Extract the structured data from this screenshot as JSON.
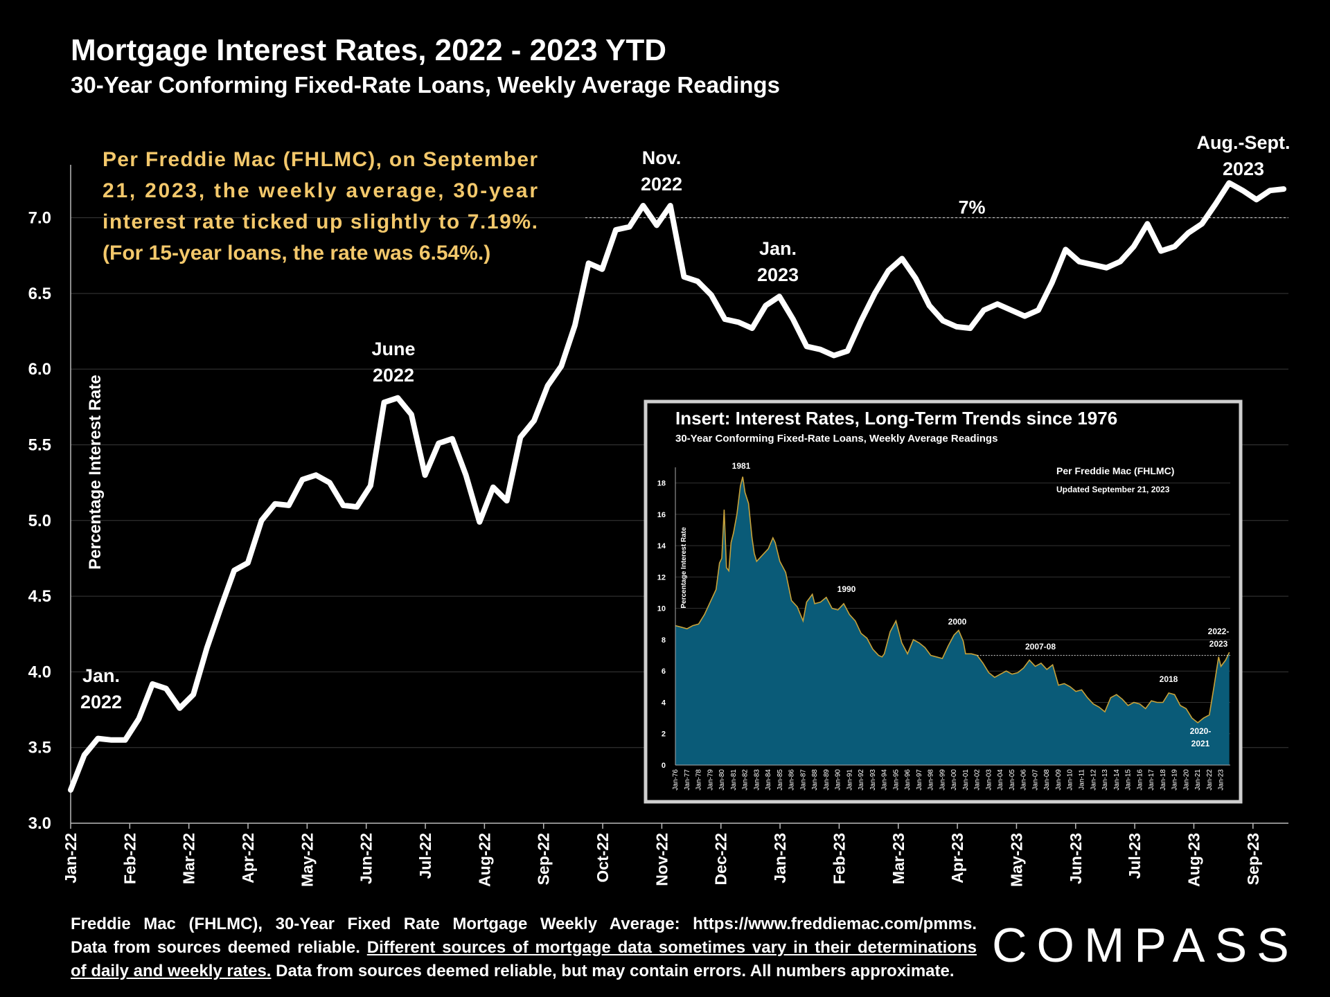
{
  "header": {
    "title": "Mortgage Interest Rates, 2022 - 2023 YTD",
    "subtitle": "30-Year Conforming Fixed-Rate Loans, Weekly Average Readings"
  },
  "chart_data": [
    {
      "type": "line",
      "title": "Mortgage Interest Rates, 2022 - 2023 YTD",
      "subtitle": "30-Year Conforming Fixed-Rate Loans, Weekly Average Readings",
      "ylabel": "Percentage Interest  Rate",
      "xlabel": "",
      "ylim": [
        3.0,
        7.35
      ],
      "yticks": [
        "3.0",
        "3.5",
        "4.0",
        "4.5",
        "5.0",
        "5.5",
        "6.0",
        "6.5",
        "7.0"
      ],
      "xticks": [
        "Jan-22",
        "Feb-22",
        "Mar-22",
        "Apr-22",
        "May-22",
        "Jun-22",
        "Jul-22",
        "Aug-22",
        "Sep-22",
        "Oct-22",
        "Nov-22",
        "Dec-22",
        "Jan-23",
        "Feb-23",
        "Mar-23",
        "Apr-23",
        "May-23",
        "Jun-23",
        "Jul-23",
        "Aug-23",
        "Sep-23"
      ],
      "grid": true,
      "reference_line": {
        "value": 7.0,
        "label": "7%"
      },
      "series": [
        {
          "name": "",
          "color": "#ffffff",
          "values": [
            3.22,
            3.45,
            3.56,
            3.55,
            3.55,
            3.69,
            3.92,
            3.89,
            3.76,
            3.85,
            4.16,
            4.42,
            4.67,
            4.72,
            5.0,
            5.11,
            5.1,
            5.27,
            5.3,
            5.25,
            5.1,
            5.09,
            5.23,
            5.78,
            5.81,
            5.7,
            5.3,
            5.51,
            5.54,
            5.3,
            4.99,
            5.22,
            5.13,
            5.55,
            5.66,
            5.89,
            6.02,
            6.29,
            6.7,
            6.66,
            6.92,
            6.94,
            7.08,
            6.95,
            7.08,
            6.61,
            6.58,
            6.49,
            6.33,
            6.31,
            6.27,
            6.42,
            6.48,
            6.33,
            6.15,
            6.13,
            6.09,
            6.12,
            6.32,
            6.5,
            6.65,
            6.73,
            6.6,
            6.42,
            6.32,
            6.28,
            6.27,
            6.39,
            6.43,
            6.39,
            6.35,
            6.39,
            6.57,
            6.79,
            6.71,
            6.69,
            6.67,
            6.71,
            6.81,
            6.96,
            6.78,
            6.81,
            6.9,
            6.96,
            7.09,
            7.23,
            7.18,
            7.12,
            7.18,
            7.19
          ]
        }
      ],
      "annotations": [
        {
          "text": "Jan.\n2022"
        },
        {
          "text": "June\n2022"
        },
        {
          "text": "Nov.\n2022"
        },
        {
          "text": "Jan.\n2023"
        },
        {
          "text": "Aug.-Sept.\n2023"
        },
        {
          "text": "Per Freddie Mac (FHLMC), on September 21, 2023, the weekly average, 30-year interest rate ticked up slightly to 7.19%. (For 15-year loans, the rate was 6.54%.)",
          "color": "#f3c86b"
        }
      ]
    },
    {
      "type": "area",
      "title": "Insert: Interest Rates, Long-Term Trends since 1976",
      "subtitle": "30-Year Conforming Fixed-Rate Loans, Weekly Average Readings",
      "ylabel": "Percentage Interest  Rate",
      "ylim": [
        0,
        19
      ],
      "yticks": [
        "0",
        "2",
        "4",
        "6",
        "8",
        "10",
        "12",
        "14",
        "16",
        "18"
      ],
      "xticks": [
        "Jan-76",
        "Jan-77",
        "Jan-78",
        "Jan-79",
        "Jan-80",
        "Jan-81",
        "Jan-82",
        "Jan-83",
        "Jan-84",
        "Jan-85",
        "Jan-86",
        "Jan-87",
        "Jan-88",
        "Jan-89",
        "Jan-90",
        "Jan-91",
        "Jan-92",
        "Jan-93",
        "Jan-94",
        "Jan-95",
        "Jan-96",
        "Jan-97",
        "Jan-98",
        "Jan-99",
        "Jan-00",
        "Jan-01",
        "Jan-02",
        "Jan-03",
        "Jan-04",
        "Jan-05",
        "Jan-06",
        "Jan-07",
        "Jan-08",
        "Jan-09",
        "Jan-10",
        "Jan-11",
        "Jan-12",
        "Jan-13",
        "Jan-14",
        "Jan-15",
        "Jan-16",
        "Jan-17",
        "Jan-18",
        "Jan-19",
        "Jan-20",
        "Jan-21",
        "Jan-22",
        "Jan-23"
      ],
      "reference_line": {
        "value": 7.0
      },
      "fill_color": "#0a5b78",
      "line_color": "#c8a23a",
      "notes": [
        "Per Freddie Mac (FHLMC)",
        "Updated September 21, 2023"
      ],
      "annotations": [
        {
          "text": "1981"
        },
        {
          "text": "1990"
        },
        {
          "text": "2000"
        },
        {
          "text": "2007-08"
        },
        {
          "text": "2018"
        },
        {
          "text": "2020-\n2021"
        },
        {
          "text": "2022-\n2023"
        }
      ],
      "x": [
        1976.0,
        1976.5,
        1977.0,
        1977.5,
        1978.0,
        1978.5,
        1979.0,
        1979.5,
        1979.8,
        1980.0,
        1980.2,
        1980.4,
        1980.6,
        1980.8,
        1981.0,
        1981.3,
        1981.6,
        1981.8,
        1982.0,
        1982.3,
        1982.6,
        1982.8,
        1983.0,
        1983.5,
        1984.0,
        1984.4,
        1984.6,
        1985.0,
        1985.5,
        1986.0,
        1986.5,
        1987.0,
        1987.3,
        1987.8,
        1988.0,
        1988.5,
        1989.0,
        1989.5,
        1990.0,
        1990.5,
        1991.0,
        1991.5,
        1992.0,
        1992.5,
        1993.0,
        1993.5,
        1993.8,
        1994.0,
        1994.5,
        1995.0,
        1995.5,
        1996.0,
        1996.5,
        1997.0,
        1997.5,
        1998.0,
        1998.5,
        1999.0,
        1999.5,
        2000.0,
        2000.4,
        2000.8,
        2001.0,
        2001.5,
        2002.0,
        2002.5,
        2003.0,
        2003.5,
        2004.0,
        2004.5,
        2005.0,
        2005.5,
        2006.0,
        2006.5,
        2007.0,
        2007.5,
        2008.0,
        2008.5,
        2009.0,
        2009.5,
        2010.0,
        2010.5,
        2011.0,
        2011.5,
        2012.0,
        2012.5,
        2013.0,
        2013.5,
        2014.0,
        2014.5,
        2015.0,
        2015.5,
        2016.0,
        2016.5,
        2017.0,
        2017.5,
        2018.0,
        2018.5,
        2019.0,
        2019.5,
        2020.0,
        2020.5,
        2021.0,
        2021.5,
        2022.0,
        2022.4,
        2022.8,
        2023.0,
        2023.4,
        2023.72
      ],
      "values": [
        8.9,
        8.8,
        8.7,
        8.9,
        9.0,
        9.6,
        10.4,
        11.2,
        12.9,
        13.2,
        16.3,
        12.6,
        12.4,
        14.2,
        14.8,
        16.0,
        17.8,
        18.4,
        17.4,
        16.7,
        14.5,
        13.5,
        13.0,
        13.4,
        13.8,
        14.5,
        14.2,
        13.0,
        12.3,
        10.5,
        10.1,
        9.2,
        10.4,
        10.9,
        10.3,
        10.4,
        10.7,
        10.0,
        9.9,
        10.3,
        9.6,
        9.2,
        8.4,
        8.1,
        7.4,
        7.0,
        6.9,
        7.1,
        8.5,
        9.2,
        7.8,
        7.1,
        8.0,
        7.8,
        7.5,
        7.0,
        6.9,
        6.8,
        7.6,
        8.3,
        8.6,
        7.9,
        7.1,
        7.1,
        7.0,
        6.5,
        5.9,
        5.6,
        5.8,
        6.0,
        5.8,
        5.9,
        6.2,
        6.7,
        6.3,
        6.5,
        6.1,
        6.4,
        5.1,
        5.2,
        5.0,
        4.7,
        4.8,
        4.3,
        3.9,
        3.7,
        3.4,
        4.3,
        4.5,
        4.2,
        3.8,
        4.0,
        3.9,
        3.6,
        4.1,
        4.0,
        4.0,
        4.6,
        4.5,
        3.8,
        3.6,
        3.0,
        2.7,
        3.0,
        3.2,
        5.0,
        6.9,
        6.3,
        6.7,
        7.2
      ]
    }
  ],
  "footer": {
    "line1": "Freddie Mac (FHLMC), 30-Year Fixed Rate Mortgage Weekly Average:  https://www.freddiemac.com/pmms.",
    "line2a": "Data from sources deemed reliable.",
    "line2b": "Different sources of mortgage data sometimes vary in their determinations",
    "line3a": "of daily and weekly rates.",
    "line3b": "Data from sources deemed reliable, but may contain errors. All numbers approximate."
  },
  "logo": "COMPASS"
}
